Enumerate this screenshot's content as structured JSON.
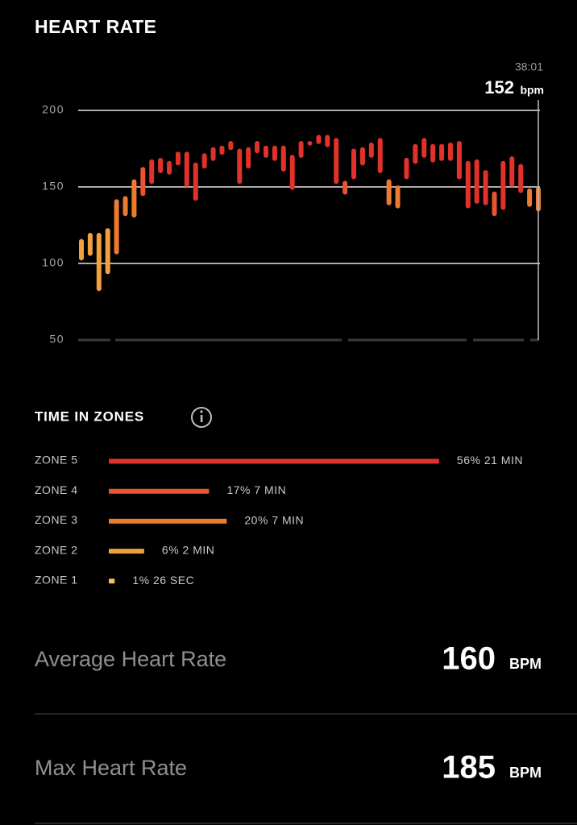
{
  "header": {
    "title": "HEART RATE"
  },
  "chart_data": {
    "type": "range-bar",
    "low": [
      102,
      105,
      82,
      93,
      106,
      131,
      130,
      144,
      152,
      159,
      158,
      164,
      150,
      141,
      162,
      167,
      171,
      174,
      152,
      162,
      172,
      169,
      167,
      160,
      148,
      169,
      177,
      178,
      176,
      152,
      145,
      155,
      164,
      169,
      159,
      138,
      136,
      155,
      165,
      169,
      166,
      167,
      167,
      155,
      136,
      139,
      138,
      131,
      135,
      150,
      146,
      137,
      134
    ],
    "high": [
      116,
      120,
      120,
      123,
      142,
      144,
      155,
      163,
      168,
      169,
      167,
      173,
      173,
      166,
      172,
      176,
      177,
      180,
      175,
      176,
      180,
      177,
      177,
      177,
      171,
      180,
      180,
      184,
      184,
      182,
      154,
      175,
      176,
      179,
      182,
      155,
      151,
      169,
      178,
      182,
      178,
      178,
      179,
      180,
      167,
      168,
      161,
      147,
      167,
      170,
      165,
      149,
      150
    ],
    "colors": [
      "#f2a03e",
      "#f2a03e",
      "#f2a03e",
      "#f2a03e",
      "#ee7a30",
      "#ee7a30",
      "#ee7a30",
      "#e8552e",
      "#e0322b",
      "#e0322b",
      "#e0322b",
      "#e0322b",
      "#e0322b",
      "#e0322b",
      "#e0322b",
      "#e0322b",
      "#e0322b",
      "#e0322b",
      "#e0322b",
      "#e0322b",
      "#e0322b",
      "#e0322b",
      "#e0322b",
      "#e0322b",
      "#e0322b",
      "#e0322b",
      "#e0322b",
      "#e0322b",
      "#e0322b",
      "#e0322b",
      "#e8552e",
      "#e0322b",
      "#e0322b",
      "#e0322b",
      "#e0322b",
      "#ee7a30",
      "#ee7a30",
      "#e0322b",
      "#e0322b",
      "#e0322b",
      "#e0322b",
      "#e0322b",
      "#e0322b",
      "#e0322b",
      "#e0322b",
      "#e0322b",
      "#e0322b",
      "#e8552e",
      "#e0322b",
      "#e0322b",
      "#e0322b",
      "#ee7a30",
      "#ee7a30"
    ],
    "ylim": [
      50,
      200
    ],
    "yticks": [
      50,
      100,
      150,
      200
    ],
    "grid": true,
    "cursor": {
      "time": "38:01",
      "value": 152,
      "unit": "bpm"
    }
  },
  "time_in_zones": {
    "title": "TIME IN ZONES",
    "zones": [
      {
        "label": "ZONE 5",
        "percent": 56,
        "percent_label": "56%",
        "duration": "21 MIN",
        "color": "#e0322b"
      },
      {
        "label": "ZONE 4",
        "percent": 17,
        "percent_label": "17%",
        "duration": "7 MIN",
        "color": "#e8552e"
      },
      {
        "label": "ZONE 3",
        "percent": 20,
        "percent_label": "20%",
        "duration": "7 MIN",
        "color": "#ee7a30"
      },
      {
        "label": "ZONE 2",
        "percent": 6,
        "percent_label": "6%",
        "duration": "2 MIN",
        "color": "#f2a03e"
      },
      {
        "label": "ZONE 1",
        "percent": 1,
        "percent_label": "1%",
        "duration": "26 SEC",
        "color": "#f7c15a"
      }
    ]
  },
  "stats": [
    {
      "label": "Average Heart Rate",
      "value": 160,
      "unit": "BPM"
    },
    {
      "label": "Max Heart Rate",
      "value": 185,
      "unit": "BPM"
    }
  ]
}
